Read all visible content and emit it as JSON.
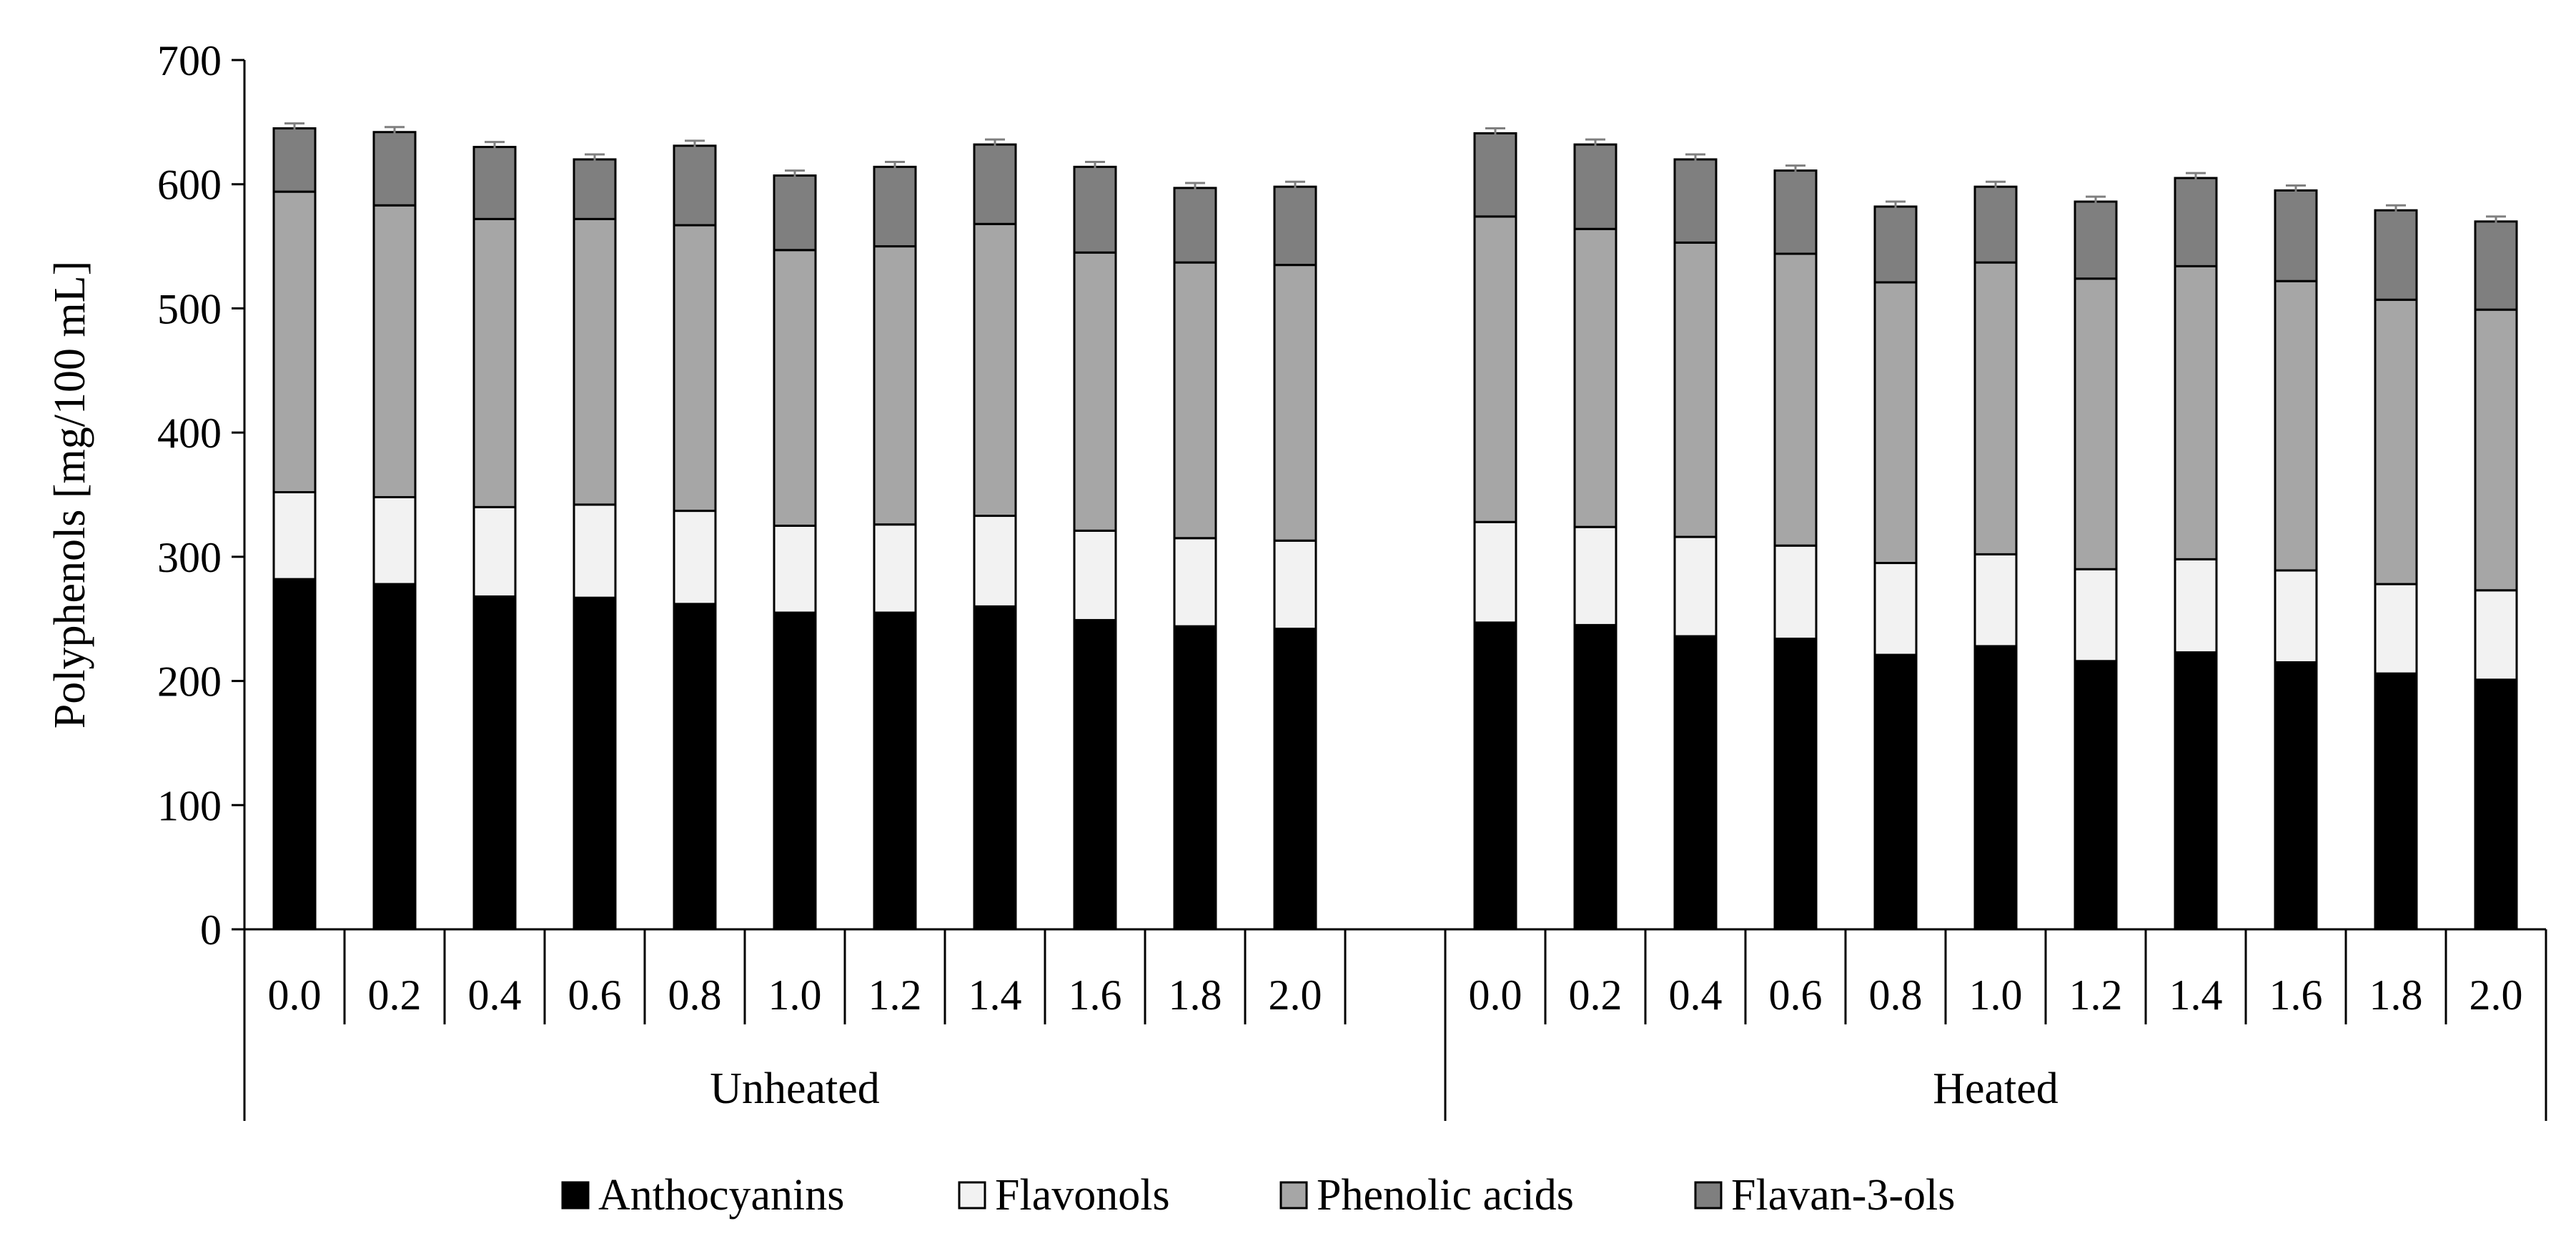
{
  "chart_data": {
    "type": "bar",
    "stacked": true,
    "title": "",
    "xlabel": "",
    "ylabel": "Polyphenols [mg/100 mL]",
    "ylim": [
      0,
      700
    ],
    "yticks": [
      0,
      100,
      200,
      300,
      400,
      500,
      600,
      700
    ],
    "ytick_labels": [
      "0",
      "100",
      "200",
      "300",
      "400",
      "500",
      "600",
      "700"
    ],
    "grid": false,
    "legend_position": "bottom",
    "error_bars": true,
    "groups": [
      {
        "name": "Unheated",
        "categories": [
          "0.0",
          "0.2",
          "0.4",
          "0.6",
          "0.8",
          "1.0",
          "1.2",
          "1.4",
          "1.6",
          "1.8",
          "2.0"
        ],
        "series": [
          {
            "name": "Anthocyanins",
            "values": [
              282,
              278,
              268,
              267,
              262,
              255,
              255,
              260,
              249,
              244,
              242
            ]
          },
          {
            "name": "Flavonols",
            "values": [
              70,
              70,
              72,
              75,
              75,
              70,
              71,
              73,
              72,
              71,
              71
            ]
          },
          {
            "name": "Phenolic acids",
            "values": [
              242,
              235,
              232,
              230,
              230,
              222,
              224,
              235,
              224,
              222,
              222
            ]
          },
          {
            "name": "Flavan-3-ols",
            "values": [
              51,
              59,
              58,
              48,
              64,
              60,
              64,
              64,
              69,
              60,
              63
            ]
          }
        ],
        "totals": [
          645,
          642,
          630,
          620,
          631,
          607,
          614,
          632,
          614,
          597,
          598
        ],
        "errors": [
          4,
          4,
          4,
          4,
          4,
          4,
          4,
          4,
          4,
          4,
          4
        ]
      },
      {
        "name": "Heated",
        "categories": [
          "0.0",
          "0.2",
          "0.4",
          "0.6",
          "0.8",
          "1.0",
          "1.2",
          "1.4",
          "1.6",
          "1.8",
          "2.0"
        ],
        "series": [
          {
            "name": "Anthocyanins",
            "values": [
              247,
              245,
              236,
              234,
              221,
              228,
              216,
              223,
              215,
              206,
              201
            ]
          },
          {
            "name": "Flavonols",
            "values": [
              81,
              79,
              80,
              75,
              74,
              74,
              74,
              75,
              74,
              72,
              72
            ]
          },
          {
            "name": "Phenolic acids",
            "values": [
              246,
              240,
              237,
              235,
              226,
              235,
              234,
              236,
              233,
              229,
              226
            ]
          },
          {
            "name": "Flavan-3-ols",
            "values": [
              67,
              68,
              67,
              67,
              61,
              61,
              62,
              71,
              73,
              72,
              71
            ]
          }
        ],
        "totals": [
          641,
          632,
          620,
          611,
          582,
          598,
          586,
          605,
          595,
          579,
          570
        ],
        "errors": [
          4,
          4,
          4,
          4,
          4,
          4,
          4,
          4,
          4,
          4,
          4
        ]
      }
    ],
    "legend": [
      "Anthocyanins",
      "Flavonols",
      "Phenolic acids",
      "Flavan-3-ols"
    ],
    "colors": {
      "Anthocyanins": "#000000",
      "Flavonols": "#f2f2f2",
      "Phenolic acids": "#a6a6a6",
      "Flavan-3-ols": "#7f7f7f",
      "error_bar": "#7f7f7f",
      "axis": "#000000"
    }
  }
}
